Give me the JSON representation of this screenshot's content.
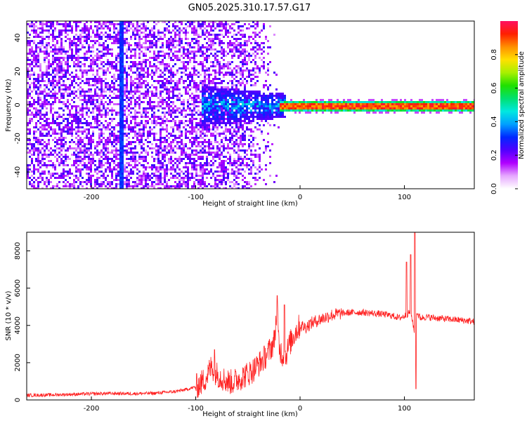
{
  "figure": {
    "title": "GN05.2025.310.17.57.G17"
  },
  "chart_data": [
    {
      "type": "heatmap",
      "xlabel": "Height of straight line (km)",
      "ylabel": "Frequency (Hz)",
      "xlim": [
        -262,
        167
      ],
      "ylim": [
        -50,
        50
      ],
      "xticks": [
        -200,
        -100,
        0,
        100
      ],
      "yticks": [
        -40,
        -20,
        0,
        20,
        40
      ],
      "grid": false,
      "colorbar": {
        "label": "Normalized spectral amplitude",
        "range": [
          0,
          1
        ],
        "ticks": [
          0.0,
          0.2,
          0.4,
          0.6,
          0.8
        ],
        "colors": [
          "#ffffff",
          "#e6a8ff",
          "#b000ff",
          "#5000ff",
          "#0028ff",
          "#00a0ff",
          "#00e8e0",
          "#00e070",
          "#20e000",
          "#a8f000",
          "#ffe000",
          "#ff9000",
          "#ff2000",
          "#ff1060"
        ]
      },
      "features": {
        "noise_region_x": [
          -262,
          -60
        ],
        "noise_fade_end_x": -20,
        "transition_region_x": [
          -95,
          -15
        ],
        "transition_spread_hz": 12,
        "carrier_start_x": -20,
        "carrier_frequency_hz": 0,
        "vertical_streak_x": -172
      }
    },
    {
      "type": "line",
      "xlabel": "Height of straight line (km)",
      "ylabel": "SNR (10 * v/v)",
      "xlim": [
        -262,
        167
      ],
      "ylim": [
        0,
        9000
      ],
      "xticks": [
        -200,
        -100,
        0,
        100
      ],
      "yticks": [
        0,
        2000,
        4000,
        6000,
        8000
      ],
      "grid": false,
      "series_color": "#ff2020",
      "x": [
        -262,
        -240,
        -220,
        -200,
        -180,
        -160,
        -140,
        -120,
        -110,
        -100,
        -95,
        -90,
        -85,
        -80,
        -75,
        -70,
        -65,
        -60,
        -55,
        -50,
        -45,
        -40,
        -35,
        -30,
        -25,
        -22,
        -20,
        -15,
        -10,
        -5,
        0,
        5,
        10,
        20,
        30,
        40,
        50,
        60,
        70,
        80,
        90,
        95,
        100,
        105,
        108,
        110,
        112,
        115,
        120,
        130,
        140,
        150,
        160,
        167
      ],
      "y": [
        250,
        270,
        300,
        330,
        350,
        340,
        360,
        450,
        550,
        700,
        900,
        1200,
        1800,
        1400,
        1200,
        1000,
        950,
        1100,
        1250,
        1400,
        1600,
        1900,
        2200,
        2600,
        3100,
        4800,
        2800,
        2200,
        3000,
        3600,
        4000,
        3900,
        4100,
        4350,
        4550,
        4650,
        4700,
        4700,
        4650,
        4600,
        4500,
        4400,
        4500,
        4700,
        4200,
        3500,
        4700,
        4400,
        4450,
        4400,
        4350,
        4300,
        4250,
        4200
      ],
      "spikes": [
        {
          "x": -82,
          "y": 2700
        },
        {
          "x": -22,
          "y": 5600
        },
        {
          "x": -15,
          "y": 5100
        },
        {
          "x": 102,
          "y": 7400
        },
        {
          "x": 106,
          "y": 7800
        },
        {
          "x": 110,
          "y": 9000
        },
        {
          "x": 111,
          "y": 600
        }
      ]
    }
  ]
}
